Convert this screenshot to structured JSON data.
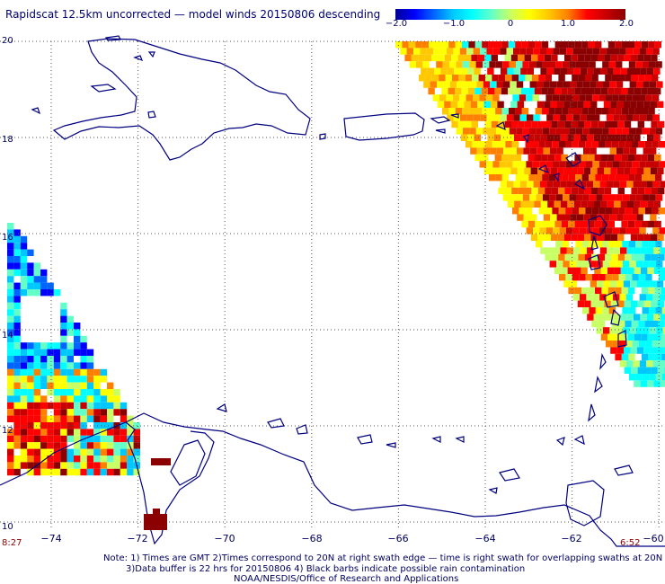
{
  "title": "Rapidscat 12.5km uncorrected — model winds 20150806 descending",
  "colorbar": {
    "ticks": [
      "−2.0",
      "−1.0",
      "0",
      "1.0",
      "2.0"
    ],
    "values": [
      -2.0,
      -1.0,
      0,
      1.0,
      2.0
    ],
    "colors": [
      "#000096",
      "#0000ff",
      "#0064ff",
      "#00c8ff",
      "#00ffff",
      "#64ffc8",
      "#c8ff64",
      "#ffff00",
      "#ffc800",
      "#ff8000",
      "#ff0000",
      "#c80000",
      "#8b0000"
    ]
  },
  "axes": {
    "lat_labels": [
      "20",
      "18",
      "16",
      "14",
      "12",
      "10"
    ],
    "lat_values": [
      20,
      18,
      16,
      14,
      12,
      10
    ],
    "lon_labels": [
      "−74",
      "−72",
      "−70",
      "−68",
      "−66",
      "−64",
      "−62",
      "−60"
    ],
    "lon_values": [
      -74,
      -72,
      -70,
      -68,
      -66,
      -64,
      -62,
      -60
    ],
    "lat_range": [
      10,
      20
    ],
    "lon_range": [
      -75,
      -60
    ],
    "grid": "dotted"
  },
  "swath_times": {
    "left": "8:27",
    "right": "6:52"
  },
  "notes": [
    "Note: 1) Times are GMT 2)Times correspond to 20N at right swath edge — time is right swath for overlapping swaths at 20N",
    "3)Data buffer is 22 hrs for 20150806 4) Black barbs indicate possible rain contamination",
    "NOAA/NESDIS/Office of Research and Applications"
  ]
}
